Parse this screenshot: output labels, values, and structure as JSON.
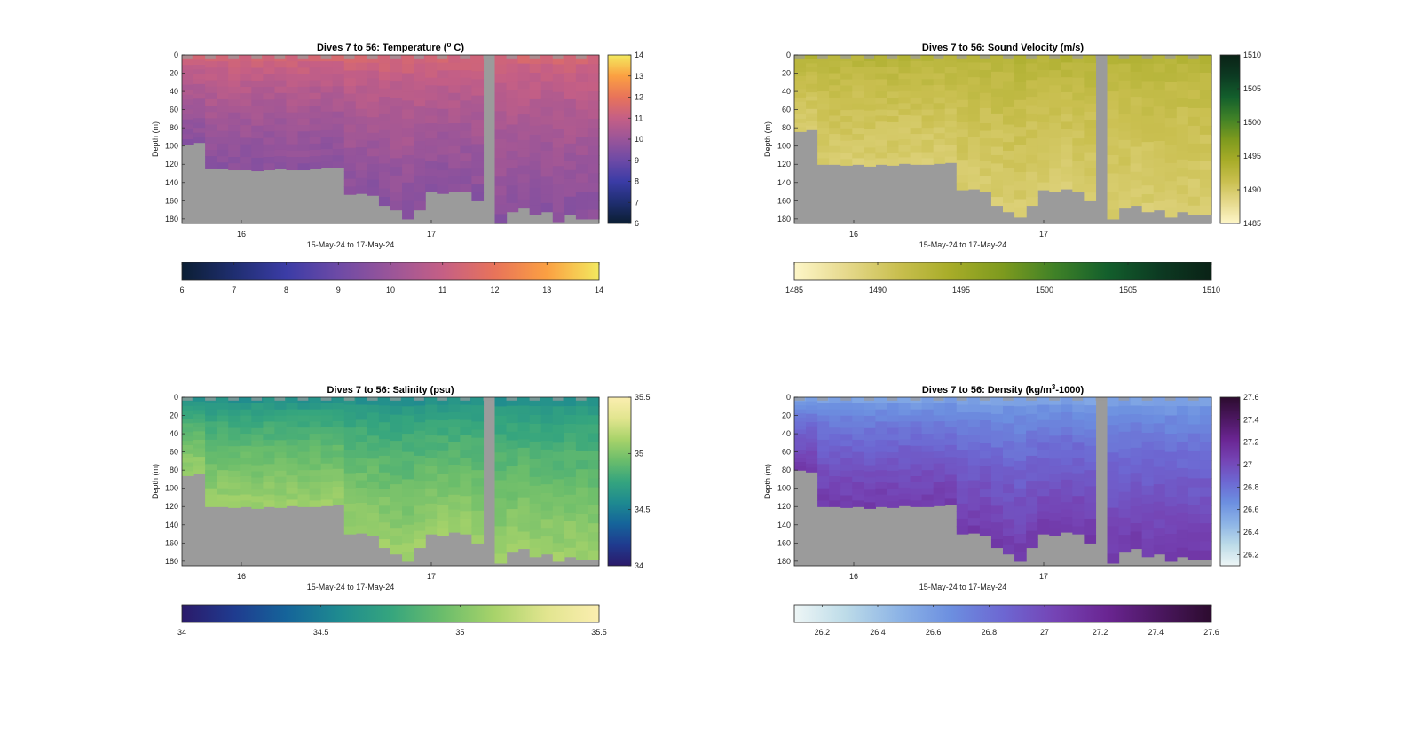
{
  "chart_data": [
    {
      "type": "heatmap",
      "title_main": "Dives 7 to 56: Temperature (",
      "title_sup": "o",
      "title_end": " C)",
      "ylabel": "Depth (m)",
      "xlabel": "15-May-24 to 17-May-24",
      "x_ticks": [
        "16",
        "17"
      ],
      "y_ticks": [
        "0",
        "20",
        "40",
        "60",
        "80",
        "100",
        "120",
        "140",
        "160",
        "180"
      ],
      "ylim": [
        0,
        185
      ],
      "colorbar_ticks": [
        "6",
        "7",
        "8",
        "9",
        "10",
        "11",
        "12",
        "13",
        "14"
      ],
      "horizontal_colorbar_ticks": [
        "6",
        "7",
        "8",
        "9",
        "10",
        "11",
        "12",
        "13",
        "14"
      ],
      "clim": [
        6,
        14
      ],
      "colormap": [
        "#0b1e33",
        "#1f2e70",
        "#3b3ca6",
        "#6d4aa6",
        "#9a5599",
        "#c55f85",
        "#e8735a",
        "#fba042",
        "#f3e95f"
      ],
      "surface_value": 11.6,
      "bottom_value": 9.6,
      "sea_floor_depths_m": [
        98,
        96,
        125,
        125,
        126,
        126,
        127,
        126,
        125,
        126,
        126,
        125,
        124,
        124,
        153,
        152,
        154,
        165,
        170,
        180,
        170,
        150,
        152,
        150,
        150,
        160,
        185,
        185,
        172,
        168,
        175,
        172,
        183,
        175,
        180,
        180
      ]
    },
    {
      "type": "heatmap",
      "title_main": "Dives 7 to 56: Sound Velocity (m/s)",
      "title_sup": "",
      "title_end": "",
      "ylabel": "Depth (m)",
      "xlabel": "15-May-24 to 17-May-24",
      "x_ticks": [
        "16",
        "17"
      ],
      "y_ticks": [
        "0",
        "20",
        "40",
        "60",
        "80",
        "100",
        "120",
        "140",
        "160",
        "180"
      ],
      "ylim": [
        0,
        185
      ],
      "colorbar_ticks": [
        "1485",
        "1490",
        "1495",
        "1500",
        "1505",
        "1510"
      ],
      "horizontal_colorbar_ticks": [
        "1485",
        "1490",
        "1495",
        "1500",
        "1505",
        "1510"
      ],
      "clim": [
        1485,
        1510
      ],
      "colormap": [
        "#fdf6c8",
        "#e6d98c",
        "#c9bf4f",
        "#a7ac28",
        "#7d9a1e",
        "#3f8127",
        "#135f2c",
        "#0c3a22",
        "#0a2216"
      ],
      "surface_value": 1493.5,
      "bottom_value": 1489.6,
      "sea_floor_depths_m": [
        84,
        82,
        120,
        120,
        121,
        120,
        122,
        120,
        121,
        119,
        120,
        120,
        119,
        118,
        148,
        147,
        150,
        165,
        172,
        178,
        165,
        148,
        150,
        147,
        150,
        160,
        180,
        180,
        168,
        165,
        172,
        170,
        178,
        172,
        175,
        175
      ]
    },
    {
      "type": "heatmap",
      "title_main": "Dives 7 to 56: Salinity (psu)",
      "title_sup": "",
      "title_end": "",
      "ylabel": "Depth (m)",
      "xlabel": "15-May-24 to 17-May-24",
      "x_ticks": [
        "16",
        "17"
      ],
      "y_ticks": [
        "0",
        "20",
        "40",
        "60",
        "80",
        "100",
        "120",
        "140",
        "160",
        "180"
      ],
      "ylim": [
        0,
        185
      ],
      "colorbar_ticks": [
        "34",
        "34.5",
        "35",
        "35.5"
      ],
      "horizontal_colorbar_ticks": [
        "34",
        "34.5",
        "35",
        "35.5"
      ],
      "clim": [
        34,
        35.5
      ],
      "colormap": [
        "#2b1a6a",
        "#1f3b8f",
        "#15649a",
        "#1e8a90",
        "#35a57e",
        "#6bbd6b",
        "#a8d36a",
        "#e2e58f",
        "#fbeeb0"
      ],
      "surface_value": 34.55,
      "bottom_value": 35.1,
      "sea_floor_depths_m": [
        86,
        84,
        120,
        120,
        121,
        120,
        122,
        120,
        121,
        119,
        120,
        120,
        119,
        118,
        150,
        149,
        152,
        165,
        172,
        180,
        165,
        150,
        152,
        148,
        150,
        160,
        182,
        182,
        170,
        166,
        175,
        172,
        180,
        175,
        178,
        178
      ]
    },
    {
      "type": "heatmap",
      "title_main": "Dives 7 to 56: Density (kg/m",
      "title_sup": "3",
      "title_end": "-1000)",
      "ylabel": "Depth (m)",
      "xlabel": "15-May-24 to 17-May-24",
      "x_ticks": [
        "16",
        "17"
      ],
      "y_ticks": [
        "0",
        "20",
        "40",
        "60",
        "80",
        "100",
        "120",
        "140",
        "160",
        "180"
      ],
      "ylim": [
        0,
        185
      ],
      "colorbar_ticks": [
        "26.2",
        "26.4",
        "26.6",
        "26.8",
        "27",
        "27.2",
        "27.4",
        "27.6"
      ],
      "horizontal_colorbar_ticks": [
        "26.2",
        "26.4",
        "26.6",
        "26.8",
        "27",
        "27.2",
        "27.4",
        "27.6"
      ],
      "clim": [
        26.1,
        27.6
      ],
      "colormap": [
        "#eef6f6",
        "#bcdbe8",
        "#8db4e6",
        "#6c8fe0",
        "#6d67d2",
        "#7544b5",
        "#6a2592",
        "#4b1760",
        "#2c0b2e"
      ],
      "surface_value": 26.5,
      "bottom_value": 27.1,
      "sea_floor_depths_m": [
        80,
        82,
        120,
        120,
        121,
        120,
        122,
        120,
        121,
        119,
        120,
        120,
        119,
        118,
        150,
        149,
        152,
        165,
        172,
        180,
        165,
        150,
        152,
        148,
        150,
        160,
        182,
        182,
        170,
        166,
        175,
        172,
        180,
        175,
        178,
        178
      ]
    }
  ]
}
